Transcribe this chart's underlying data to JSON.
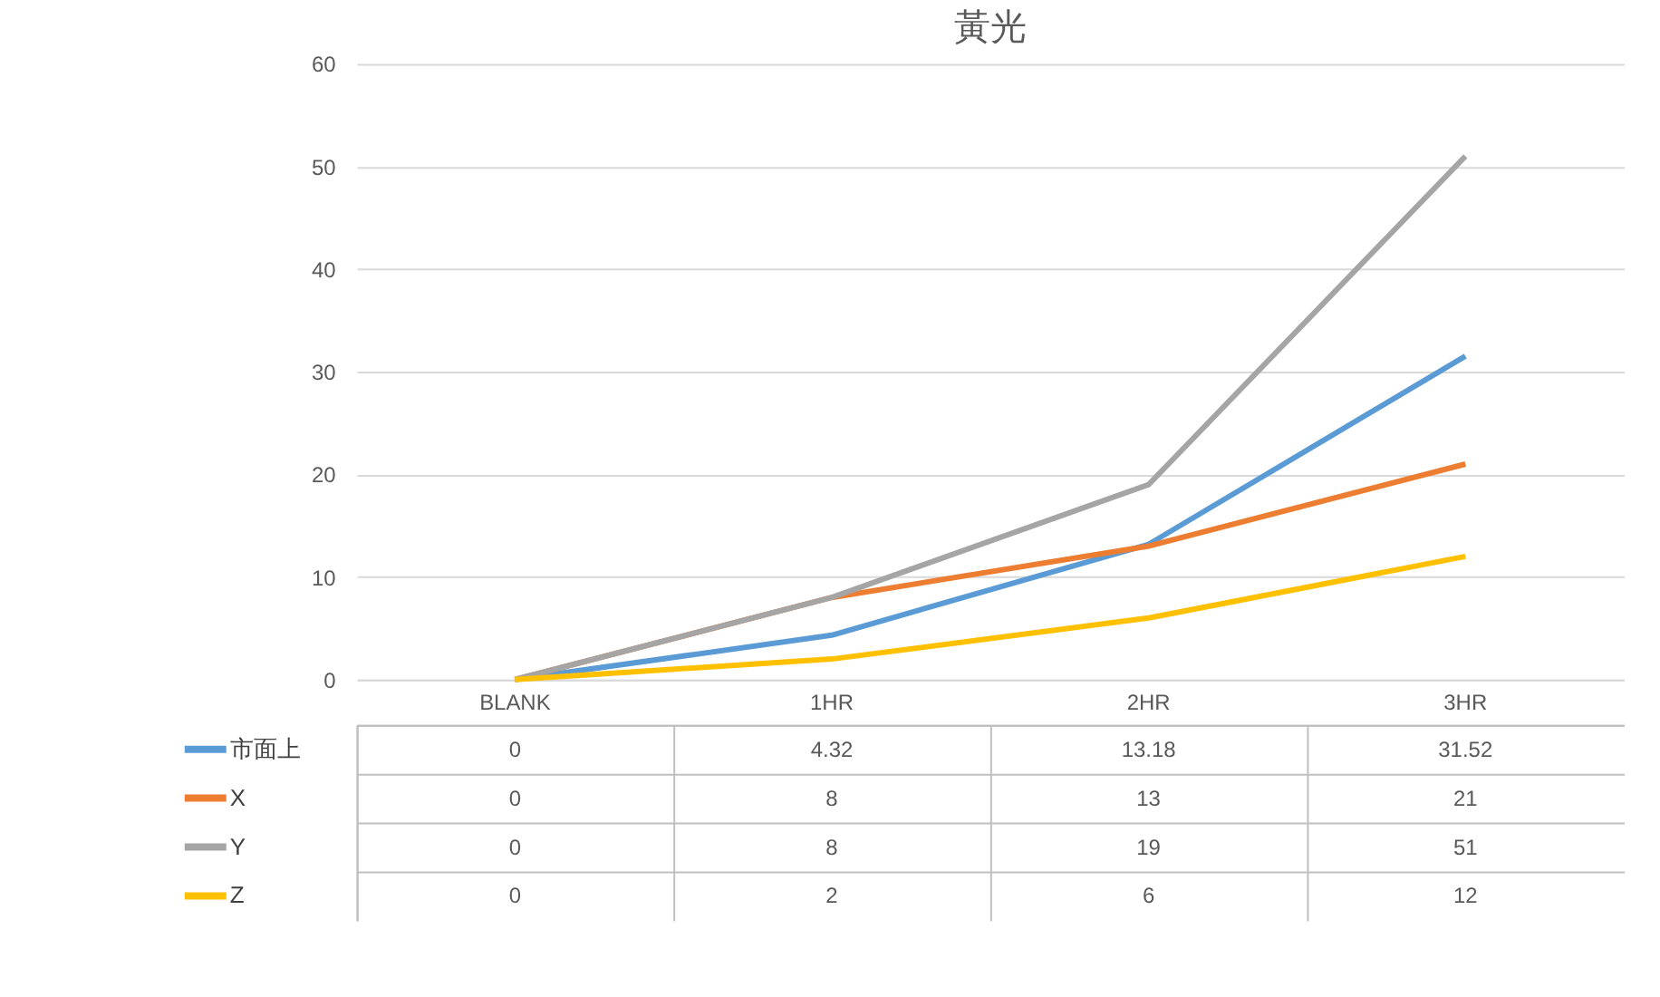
{
  "chart_data": {
    "type": "line",
    "title": "黃光",
    "categories": [
      "BLANK",
      "1HR",
      "2HR",
      "3HR"
    ],
    "series": [
      {
        "name": "市面上",
        "color": "#5b9bd5",
        "values": [
          0,
          4.32,
          13.18,
          31.52
        ]
      },
      {
        "name": "X",
        "color": "#ed7d31",
        "values": [
          0,
          8,
          13,
          21
        ]
      },
      {
        "name": "Y",
        "color": "#a5a5a5",
        "values": [
          0,
          8,
          19,
          51
        ]
      },
      {
        "name": "Z",
        "color": "#ffc000",
        "values": [
          0,
          2,
          6,
          12
        ]
      }
    ],
    "ylim": [
      0,
      60
    ],
    "yticks": [
      0,
      10,
      20,
      30,
      40,
      50,
      60
    ],
    "grid": "y",
    "legend": "bottom",
    "data_labels": true,
    "marker": "none",
    "line_style": "solid"
  }
}
